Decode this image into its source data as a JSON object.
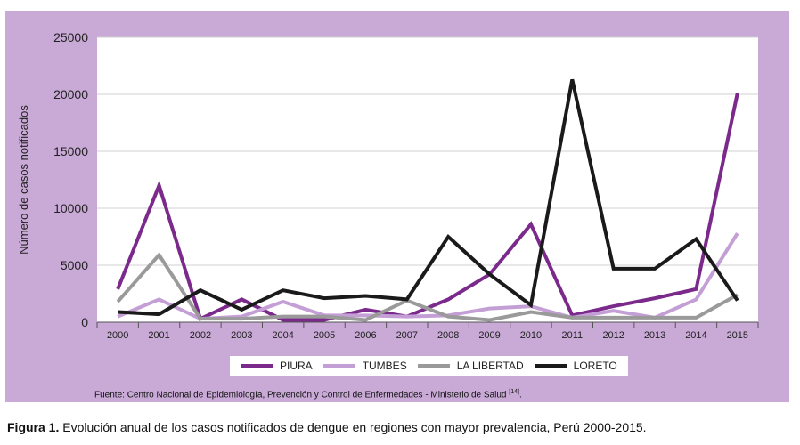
{
  "chart_data": {
    "type": "line",
    "title": "",
    "xlabel": "",
    "ylabel": "Número de casos notificados",
    "ylim": [
      0,
      25000
    ],
    "yticks": [
      0,
      5000,
      10000,
      15000,
      20000,
      25000
    ],
    "categories": [
      "2000",
      "2001",
      "2002",
      "2003",
      "2004",
      "2005",
      "2006",
      "2007",
      "2008",
      "2009",
      "2010",
      "2011",
      "2012",
      "2013",
      "2014",
      "2015"
    ],
    "grid": true,
    "legend_position": "bottom",
    "series": [
      {
        "name": "PIURA",
        "color": "#7b2a8c",
        "values": [
          2900,
          12000,
          300,
          2000,
          200,
          200,
          1100,
          500,
          2000,
          4200,
          8600,
          600,
          1400,
          2100,
          2900,
          20100
        ]
      },
      {
        "name": "TUMBES",
        "color": "#c49fd6",
        "values": [
          500,
          2000,
          300,
          500,
          1800,
          600,
          600,
          500,
          600,
          1200,
          1400,
          400,
          1000,
          400,
          2000,
          7800
        ]
      },
      {
        "name": "LA LIBERTAD",
        "color": "#9a9a9a",
        "values": [
          1800,
          5900,
          300,
          300,
          500,
          500,
          200,
          1900,
          500,
          200,
          900,
          400,
          400,
          400,
          400,
          2400
        ]
      },
      {
        "name": "LORETO",
        "color": "#1a1a1a",
        "values": [
          900,
          700,
          2800,
          1100,
          2800,
          2100,
          2300,
          2000,
          7500,
          4200,
          1500,
          21300,
          4700,
          4700,
          7300,
          1900
        ]
      }
    ]
  },
  "source_text": "Fuente: Centro Nacional de Epidemiología, Prevención y Control de Enfermedades - Ministerio de Salud",
  "source_ref": "[14]",
  "source_end": ".",
  "caption_label": "Figura 1.",
  "caption_text": " Evolución anual de los casos notificados de dengue en regiones con mayor prevalencia, Perú 2000-2015."
}
